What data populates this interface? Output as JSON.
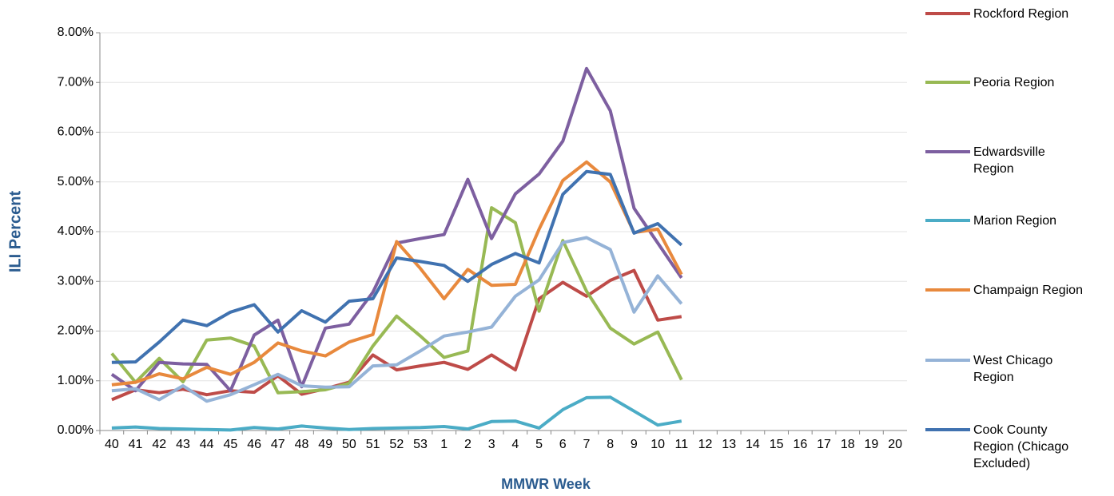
{
  "chart_data": {
    "type": "line",
    "x_label": "MMWR Week",
    "y_label": "ILI Percent",
    "categories": [
      "40",
      "41",
      "42",
      "43",
      "44",
      "45",
      "46",
      "47",
      "48",
      "49",
      "50",
      "51",
      "52",
      "53",
      "1",
      "2",
      "3",
      "4",
      "5",
      "6",
      "7",
      "8",
      "9",
      "10",
      "11",
      "12",
      "13",
      "14",
      "15",
      "16",
      "17",
      "18",
      "19",
      "20"
    ],
    "ylim": [
      0,
      8
    ],
    "yticks": [
      {
        "value": 0,
        "label": "0.00%"
      },
      {
        "value": 1,
        "label": "1.00%"
      },
      {
        "value": 2,
        "label": "2.00%"
      },
      {
        "value": 3,
        "label": "3.00%"
      },
      {
        "value": 4,
        "label": "4.00%"
      },
      {
        "value": 5,
        "label": "5.00%"
      },
      {
        "value": 6,
        "label": "6.00%"
      },
      {
        "value": 7,
        "label": "7.00%"
      },
      {
        "value": 8,
        "label": "8.00%"
      }
    ],
    "grid": true,
    "legend": "right",
    "series": [
      {
        "name": "Rockford Region",
        "color": "#be4b48",
        "values": [
          0.62,
          0.82,
          0.76,
          0.83,
          0.72,
          0.8,
          0.77,
          1.1,
          0.73,
          0.84,
          0.97,
          1.52,
          1.22,
          1.3,
          1.37,
          1.23,
          1.52,
          1.22,
          2.65,
          2.98,
          2.7,
          3.02,
          3.22,
          2.22,
          2.29,
          null,
          null,
          null,
          null,
          null,
          null,
          null,
          null,
          null
        ]
      },
      {
        "name": "Peoria Region",
        "color": "#98b954",
        "values": [
          1.55,
          0.97,
          1.45,
          0.98,
          1.82,
          1.86,
          1.7,
          0.76,
          0.78,
          0.82,
          0.95,
          1.7,
          2.3,
          1.9,
          1.47,
          1.6,
          4.48,
          4.18,
          2.4,
          3.82,
          2.8,
          2.06,
          1.74,
          1.98,
          1.02,
          null,
          null,
          null,
          null,
          null,
          null,
          null,
          null,
          null
        ]
      },
      {
        "name": "Edwardsville Region",
        "color": "#7d5fa0",
        "values": [
          1.13,
          0.8,
          1.37,
          1.34,
          1.33,
          0.8,
          1.92,
          2.22,
          0.88,
          2.06,
          2.14,
          2.78,
          3.77,
          3.86,
          3.94,
          5.05,
          3.86,
          4.76,
          5.16,
          5.82,
          7.28,
          6.43,
          4.47,
          3.77,
          3.07,
          null,
          null,
          null,
          null,
          null,
          null,
          null,
          null,
          null
        ]
      },
      {
        "name": "Marion Region",
        "color": "#4bacc6",
        "values": [
          0.05,
          0.07,
          0.04,
          0.03,
          0.02,
          0.01,
          0.06,
          0.03,
          0.09,
          0.05,
          0.02,
          0.04,
          0.05,
          0.06,
          0.08,
          0.03,
          0.18,
          0.19,
          0.05,
          0.42,
          0.66,
          0.67,
          0.39,
          0.11,
          0.19,
          null,
          null,
          null,
          null,
          null,
          null,
          null,
          null,
          null
        ]
      },
      {
        "name": "Champaign Region",
        "color": "#e8893d",
        "values": [
          0.92,
          0.97,
          1.14,
          1.04,
          1.27,
          1.13,
          1.37,
          1.76,
          1.6,
          1.5,
          1.78,
          1.93,
          3.8,
          3.26,
          2.65,
          3.24,
          2.92,
          2.94,
          4.05,
          5.03,
          5.4,
          5.0,
          3.98,
          4.05,
          3.14,
          null,
          null,
          null,
          null,
          null,
          null,
          null,
          null,
          null
        ]
      },
      {
        "name": "West Chicago Region",
        "color": "#95b3d7",
        "values": [
          0.8,
          0.84,
          0.62,
          0.9,
          0.59,
          0.72,
          0.92,
          1.13,
          0.9,
          0.87,
          0.88,
          1.3,
          1.32,
          1.6,
          1.9,
          1.98,
          2.08,
          2.7,
          3.03,
          3.78,
          3.88,
          3.64,
          2.38,
          3.11,
          2.55,
          null,
          null,
          null,
          null,
          null,
          null,
          null,
          null,
          null
        ]
      },
      {
        "name": "Cook County Region (Chicago Excluded)",
        "color": "#4072b0",
        "values": [
          1.37,
          1.38,
          1.78,
          2.22,
          2.11,
          2.38,
          2.53,
          1.98,
          2.41,
          2.18,
          2.6,
          2.65,
          3.47,
          3.4,
          3.32,
          3.0,
          3.34,
          3.56,
          3.37,
          4.75,
          5.21,
          5.15,
          3.97,
          4.16,
          3.73,
          null,
          null,
          null,
          null,
          null,
          null,
          null,
          null,
          null
        ]
      }
    ]
  }
}
